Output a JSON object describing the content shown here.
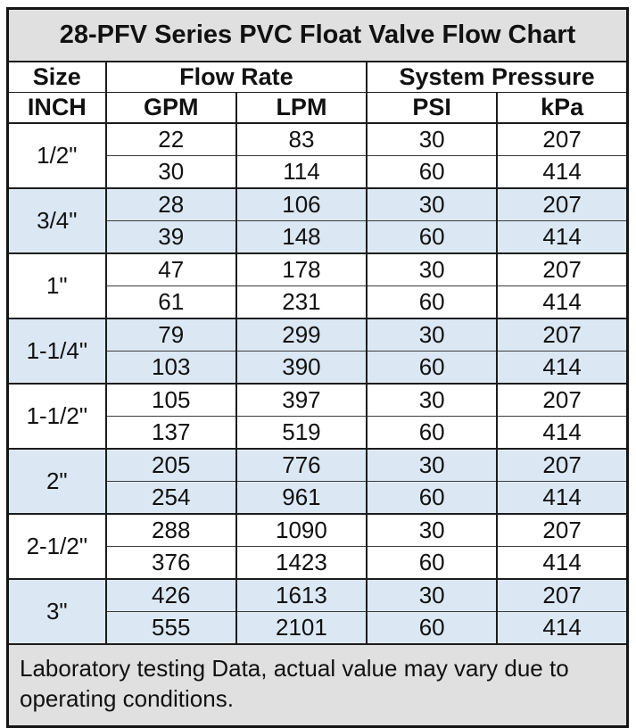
{
  "title": "28-PFV Series PVC Float Valve Flow Chart",
  "header": {
    "size": "Size",
    "size_unit": "INCH",
    "flow_rate": "Flow Rate",
    "flow_units": [
      "GPM",
      "LPM"
    ],
    "pressure": "System Pressure",
    "pressure_units": [
      "PSI",
      "kPa"
    ]
  },
  "groups": [
    {
      "size": "1/2\"",
      "rows": [
        [
          22,
          83,
          30,
          207
        ],
        [
          30,
          114,
          60,
          414
        ]
      ]
    },
    {
      "size": "3/4\"",
      "rows": [
        [
          28,
          106,
          30,
          207
        ],
        [
          39,
          148,
          60,
          414
        ]
      ]
    },
    {
      "size": "1\"",
      "rows": [
        [
          47,
          178,
          30,
          207
        ],
        [
          61,
          231,
          60,
          414
        ]
      ]
    },
    {
      "size": "1-1/4\"",
      "rows": [
        [
          79,
          299,
          30,
          207
        ],
        [
          103,
          390,
          60,
          414
        ]
      ]
    },
    {
      "size": "1-1/2\"",
      "rows": [
        [
          105,
          397,
          30,
          207
        ],
        [
          137,
          519,
          60,
          414
        ]
      ]
    },
    {
      "size": "2\"",
      "rows": [
        [
          205,
          776,
          30,
          207
        ],
        [
          254,
          961,
          60,
          414
        ]
      ]
    },
    {
      "size": "2-1/2\"",
      "rows": [
        [
          288,
          1090,
          30,
          207
        ],
        [
          376,
          1423,
          60,
          414
        ]
      ]
    },
    {
      "size": "3\"",
      "rows": [
        [
          426,
          1613,
          30,
          207
        ],
        [
          555,
          2101,
          60,
          414
        ]
      ]
    }
  ],
  "footer_note": "Laboratory testing Data, actual value may vary due to operating conditions.",
  "colors": {
    "title_bg": "#e0e0e0",
    "footer_bg": "#e0e0e0",
    "stripe_bg": "#dbe8f4",
    "border": "#1c1c1c",
    "text": "#111111"
  },
  "chart_data": {
    "type": "table",
    "title": "28-PFV Series PVC Float Valve Flow Chart",
    "column_groups": [
      "Size",
      "Flow Rate",
      "System Pressure"
    ],
    "columns": [
      "INCH",
      "GPM",
      "LPM",
      "PSI",
      "kPa"
    ],
    "rows": [
      [
        "1/2\"",
        22,
        83,
        30,
        207
      ],
      [
        "1/2\"",
        30,
        114,
        60,
        414
      ],
      [
        "3/4\"",
        28,
        106,
        30,
        207
      ],
      [
        "3/4\"",
        39,
        148,
        60,
        414
      ],
      [
        "1\"",
        47,
        178,
        30,
        207
      ],
      [
        "1\"",
        61,
        231,
        60,
        414
      ],
      [
        "1-1/4\"",
        79,
        299,
        30,
        207
      ],
      [
        "1-1/4\"",
        103,
        390,
        60,
        414
      ],
      [
        "1-1/2\"",
        105,
        397,
        30,
        207
      ],
      [
        "1-1/2\"",
        137,
        519,
        60,
        414
      ],
      [
        "2\"",
        205,
        776,
        30,
        207
      ],
      [
        "2\"",
        254,
        961,
        60,
        414
      ],
      [
        "2-1/2\"",
        288,
        1090,
        30,
        207
      ],
      [
        "2-1/2\"",
        376,
        1423,
        60,
        414
      ],
      [
        "3\"",
        426,
        1613,
        30,
        207
      ],
      [
        "3\"",
        555,
        2101,
        60,
        414
      ]
    ],
    "footnote": "Laboratory testing Data, actual value may vary due to operating conditions."
  }
}
